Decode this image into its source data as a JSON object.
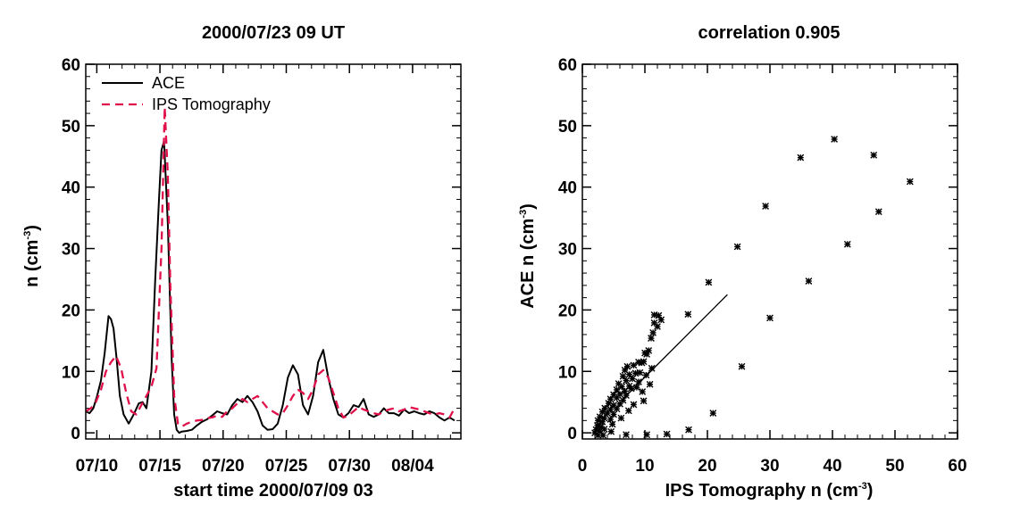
{
  "chart_data": [
    {
      "type": "line",
      "title": "2000/07/23 09 UT",
      "xlabel": "start time 2000/07/09 03",
      "ylabel_base": "n (cm",
      "ylabel_exp": "-3",
      "ylabel_close": ")",
      "xlim": [
        0,
        29.7
      ],
      "ylim": [
        -1,
        60
      ],
      "x_ticks": [
        {
          "label": "07/10",
          "value": 0.875
        },
        {
          "label": "07/15",
          "value": 5.875
        },
        {
          "label": "07/20",
          "value": 10.875
        },
        {
          "label": "07/25",
          "value": 15.875
        },
        {
          "label": "07/30",
          "value": 20.875
        },
        {
          "label": "08/04",
          "value": 25.875
        }
      ],
      "y_ticks": [
        0,
        10,
        20,
        30,
        40,
        50,
        60
      ],
      "legend_position": "top-left",
      "series": [
        {
          "name": "ACE",
          "color": "#000000",
          "dash": "solid",
          "x": [
            0,
            0.3,
            0.6,
            0.9,
            1.2,
            1.5,
            1.8,
            2.0,
            2.2,
            2.45,
            2.7,
            3.0,
            3.4,
            3.8,
            4.2,
            4.5,
            4.8,
            5.2,
            5.5,
            5.8,
            6.0,
            6.2,
            6.5,
            6.8,
            7.0,
            7.2,
            7.4,
            7.6,
            8.0,
            8.4,
            8.8,
            9.2,
            9.6,
            10.0,
            10.4,
            10.8,
            11.2,
            11.6,
            12.0,
            12.4,
            12.8,
            13.2,
            13.6,
            14.0,
            14.4,
            14.8,
            15.2,
            15.6,
            16.0,
            16.4,
            16.8,
            17.2,
            17.6,
            18.0,
            18.4,
            18.8,
            19.2,
            19.6,
            20.0,
            20.4,
            20.8,
            21.2,
            21.6,
            22.0,
            22.4,
            22.8,
            23.2,
            23.6,
            24.0,
            24.4,
            24.8,
            25.2,
            25.6,
            26.0,
            26.4,
            26.8,
            27.2,
            27.6,
            28.0,
            28.4,
            28.8,
            29.2
          ],
          "y": [
            3.5,
            3.2,
            4.0,
            6.0,
            8.5,
            13,
            19,
            18.5,
            17,
            12,
            6,
            3.0,
            1.5,
            3.0,
            4.8,
            5.0,
            4.0,
            10,
            25,
            38,
            46,
            47.5,
            34,
            12,
            3.0,
            0.5,
            0.0,
            0.2,
            0.3,
            0.5,
            1.2,
            1.8,
            2.2,
            2.8,
            3.5,
            3.2,
            3.0,
            4.5,
            5.5,
            5.0,
            6.0,
            5.0,
            3.5,
            1.2,
            0.5,
            0.6,
            1.5,
            4.5,
            9.0,
            11.0,
            9.5,
            4.5,
            3.0,
            6.0,
            11.5,
            13.5,
            9.0,
            5.5,
            3.0,
            2.5,
            3.2,
            4.5,
            4.2,
            5.5,
            3.0,
            2.6,
            3.0,
            4.0,
            3.2,
            3.2,
            2.8,
            3.8,
            3.2,
            3.5,
            3.2,
            3.0,
            3.5,
            3.2,
            2.5,
            2.0,
            2.5,
            2.0
          ]
        },
        {
          "name": "IPS Tomography",
          "color": "#e0104a",
          "dash": "dashed",
          "x": [
            0,
            0.4,
            0.8,
            1.2,
            1.6,
            2.0,
            2.4,
            2.8,
            3.2,
            3.6,
            4.0,
            4.4,
            4.8,
            5.2,
            5.6,
            6.0,
            6.25,
            6.5,
            6.7,
            7.0,
            7.3,
            7.6,
            8.0,
            8.4,
            8.8,
            9.2,
            9.6,
            10.0,
            10.4,
            10.8,
            11.2,
            11.6,
            12.0,
            12.4,
            12.8,
            13.2,
            13.6,
            14.0,
            14.4,
            14.8,
            15.2,
            15.6,
            16.0,
            16.4,
            16.8,
            17.2,
            17.6,
            18.0,
            18.4,
            18.8,
            19.2,
            19.6,
            20.0,
            20.4,
            20.8,
            21.2,
            21.6,
            22.0,
            22.4,
            22.8,
            23.2,
            23.6,
            24.0,
            24.4,
            24.8,
            25.2,
            25.6,
            26.0,
            26.4,
            26.8,
            27.2,
            27.6,
            28.0,
            28.4,
            28.8,
            29.2
          ],
          "y": [
            3.5,
            4.0,
            5.0,
            7.0,
            10.0,
            11.5,
            12.5,
            10.5,
            6.5,
            3.5,
            3.0,
            4.5,
            6.0,
            7.5,
            10.5,
            30.0,
            53.0,
            42.0,
            24.0,
            6.0,
            1.5,
            1.0,
            1.5,
            1.8,
            2.0,
            2.1,
            2.4,
            2.5,
            2.8,
            2.6,
            3.5,
            4.0,
            4.8,
            5.5,
            5.0,
            5.5,
            6.0,
            5.0,
            4.0,
            3.5,
            3.0,
            3.2,
            4.5,
            6.0,
            7.0,
            6.5,
            5.5,
            7.0,
            9.5,
            10.2,
            9.0,
            6.5,
            4.0,
            2.5,
            2.8,
            3.5,
            4.2,
            3.8,
            3.5,
            3.2,
            3.0,
            3.5,
            3.8,
            4.0,
            3.5,
            3.8,
            4.2,
            4.0,
            3.8,
            3.5,
            3.2,
            3.0,
            3.2,
            3.0,
            2.5,
            4.0
          ]
        }
      ]
    },
    {
      "type": "scatter",
      "title": "correlation 0.905",
      "xlabel_base": "IPS Tomography n (cm",
      "xlabel_exp": "-3",
      "xlabel_close": ")",
      "ylabel_base": "ACE n (cm",
      "ylabel_exp": "-3",
      "ylabel_close": ")",
      "xlim": [
        0,
        60
      ],
      "ylim": [
        -1,
        60
      ],
      "x_ticks": [
        0,
        10,
        20,
        30,
        40,
        50,
        60
      ],
      "y_ticks": [
        0,
        10,
        20,
        30,
        40,
        50,
        60
      ],
      "marker": "asterisk",
      "fit_line": {
        "x": [
          6.5,
          23.2
        ],
        "y": [
          5.5,
          22.5
        ]
      },
      "points": [
        [
          40.3,
          47.8
        ],
        [
          46.6,
          45.2
        ],
        [
          34.9,
          44.8
        ],
        [
          52.4,
          40.9
        ],
        [
          29.3,
          36.9
        ],
        [
          47.4,
          36.0
        ],
        [
          42.4,
          30.7
        ],
        [
          24.8,
          30.3
        ],
        [
          36.2,
          24.7
        ],
        [
          20.2,
          24.5
        ],
        [
          30.0,
          18.7
        ],
        [
          25.5,
          10.8
        ],
        [
          20.9,
          3.2
        ],
        [
          16.9,
          19.3
        ],
        [
          12.2,
          19.1
        ],
        [
          11.5,
          19.2
        ],
        [
          12.6,
          18.4
        ],
        [
          11.5,
          17.9
        ],
        [
          12.0,
          17.3
        ],
        [
          11.3,
          16.3
        ],
        [
          11.0,
          15.4
        ],
        [
          10.6,
          13.4
        ],
        [
          10.3,
          12.8
        ],
        [
          10.0,
          13.0
        ],
        [
          9.8,
          11.6
        ],
        [
          9.5,
          11.4
        ],
        [
          9.0,
          11.5
        ],
        [
          8.2,
          11.0
        ],
        [
          7.2,
          10.8
        ],
        [
          6.8,
          10.2
        ],
        [
          7.5,
          9.5
        ],
        [
          8.5,
          9.7
        ],
        [
          9.2,
          9.8
        ],
        [
          6.5,
          9.2
        ],
        [
          7.0,
          8.5
        ],
        [
          8.0,
          8.8
        ],
        [
          9.0,
          8.3
        ],
        [
          5.8,
          8.0
        ],
        [
          6.3,
          7.5
        ],
        [
          7.5,
          7.6
        ],
        [
          5.5,
          7.0
        ],
        [
          6.8,
          6.8
        ],
        [
          7.8,
          7.2
        ],
        [
          5.0,
          6.2
        ],
        [
          6.0,
          6.3
        ],
        [
          7.0,
          6.1
        ],
        [
          4.5,
          5.5
        ],
        [
          5.5,
          5.7
        ],
        [
          6.5,
          5.3
        ],
        [
          4.2,
          4.8
        ],
        [
          5.0,
          4.5
        ],
        [
          6.0,
          4.7
        ],
        [
          3.6,
          4.0
        ],
        [
          4.5,
          3.8
        ],
        [
          5.5,
          3.9
        ],
        [
          3.2,
          3.4
        ],
        [
          4.0,
          3.2
        ],
        [
          5.0,
          3.0
        ],
        [
          2.8,
          2.6
        ],
        [
          3.5,
          2.4
        ],
        [
          4.5,
          2.2
        ],
        [
          2.5,
          2.0
        ],
        [
          3.2,
          1.8
        ],
        [
          2.4,
          1.2
        ],
        [
          3.0,
          1.0
        ],
        [
          2.2,
          0.5
        ],
        [
          2.8,
          0.3
        ],
        [
          2.0,
          0.0
        ],
        [
          3.5,
          0.6
        ],
        [
          4.8,
          1.4
        ],
        [
          6.2,
          2.4
        ],
        [
          8.2,
          4.6
        ],
        [
          9.6,
          6.7
        ],
        [
          8.7,
          7.4
        ],
        [
          10.2,
          9.4
        ],
        [
          11.1,
          10.5
        ],
        [
          10.8,
          7.9
        ],
        [
          9.8,
          5.2
        ],
        [
          7.4,
          3.6
        ],
        [
          4.6,
          0.2
        ],
        [
          10.3,
          -0.3
        ],
        [
          13.5,
          -0.2
        ],
        [
          17.0,
          0.5
        ],
        [
          7.0,
          -0.3
        ],
        [
          3.3,
          -0.4
        ],
        [
          2.5,
          -0.4
        ]
      ]
    }
  ]
}
